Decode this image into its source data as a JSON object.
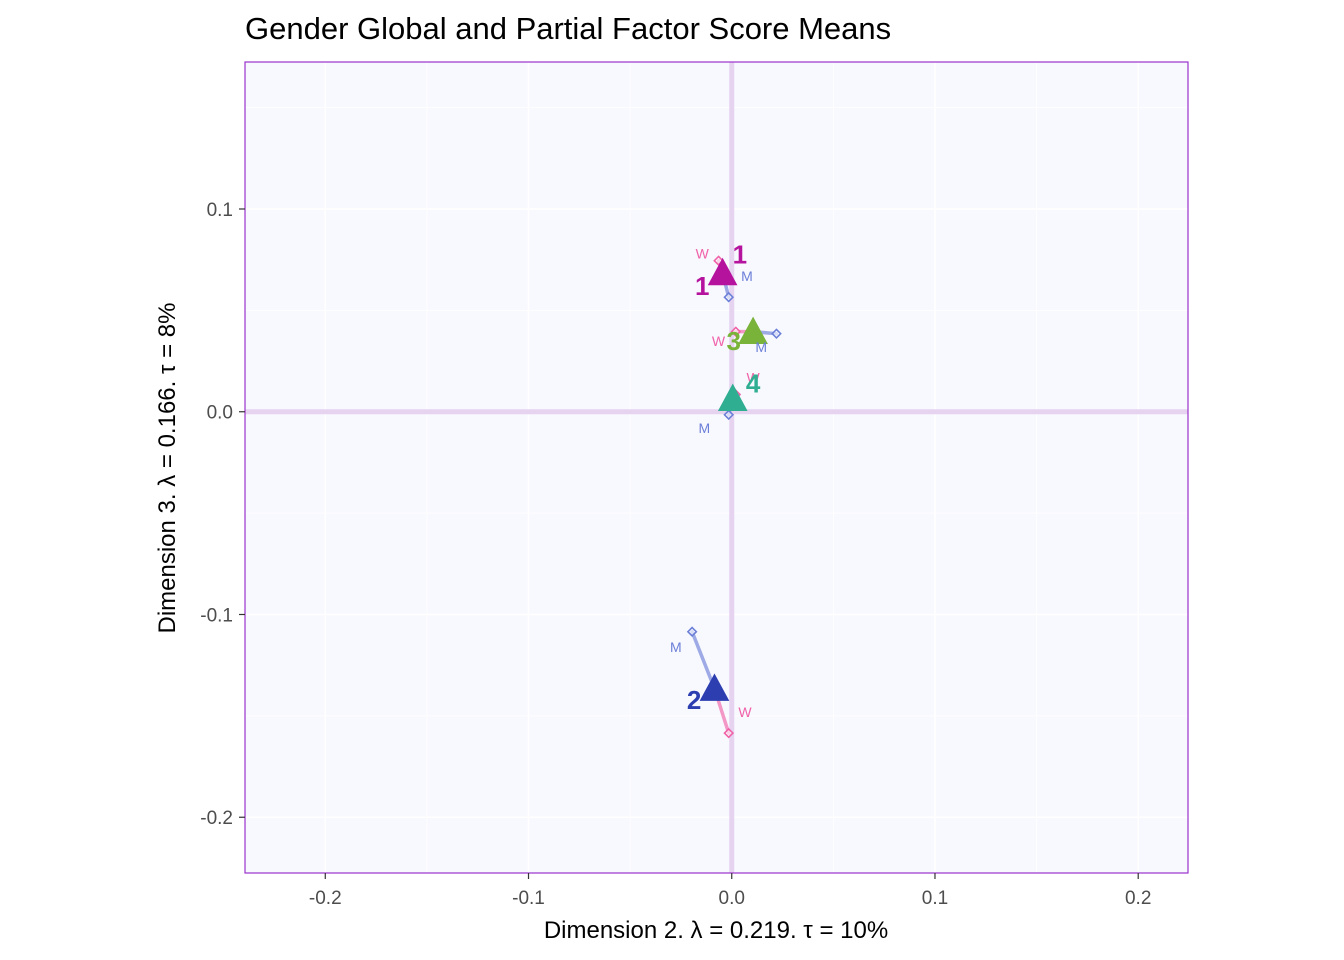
{
  "chart_data": {
    "type": "scatter",
    "title": "Gender Global and Partial Factor Score Means",
    "xlabel": "Dimension 2.   λ = 0.219.  τ = 10%",
    "ylabel": "Dimension 3.   λ = 0.166.  τ = 8%",
    "xlim": [
      -0.2395,
      0.2245
    ],
    "ylim": [
      -0.2275,
      0.1725
    ],
    "xticks": [
      -0.2,
      -0.1,
      0.0,
      0.1,
      0.2
    ],
    "xtick_labels": [
      "-0.2",
      "-0.1",
      "0.0",
      "0.1",
      "0.2"
    ],
    "yticks": [
      -0.2,
      -0.1,
      0.0,
      0.1
    ],
    "ytick_labels": [
      "-0.2",
      "-0.1",
      "0.0",
      "0.1"
    ],
    "background_color": "#f8f8ff",
    "border_color": "#9932cc",
    "origin_line_color": "#e6d3f0",
    "partial_colors": {
      "M": "#6b7fd7",
      "W": "#f062a8"
    },
    "groups": [
      {
        "name": "1",
        "color": "#b5139e",
        "x": -0.0045,
        "y": 0.0685,
        "labels": [
          {
            "text": "1",
            "x": 0.004,
            "y": 0.073
          },
          {
            "text": "1",
            "x": -0.0145,
            "y": 0.0575
          }
        ],
        "partials": [
          {
            "name": "W",
            "x": -0.0065,
            "y": 0.0745,
            "label_x": -0.0145,
            "label_y": 0.0755
          },
          {
            "name": "M",
            "x": -0.0015,
            "y": 0.0565,
            "label_x": 0.0075,
            "label_y": 0.0645
          }
        ]
      },
      {
        "name": "3",
        "color": "#7ab33a",
        "x": 0.0105,
        "y": 0.0395,
        "labels": [
          {
            "text": "3",
            "x": 0.001,
            "y": 0.0305
          }
        ],
        "partials": [
          {
            "name": "W",
            "x": 0.002,
            "y": 0.0395,
            "label_x": -0.0065,
            "label_y": 0.0325
          },
          {
            "name": "M",
            "x": 0.022,
            "y": 0.0385,
            "label_x": 0.0145,
            "label_y": 0.0295
          }
        ]
      },
      {
        "name": "4",
        "color": "#2fae92",
        "x": 0.0005,
        "y": 0.0065,
        "labels": [
          {
            "text": "4",
            "x": 0.0105,
            "y": 0.0095
          }
        ],
        "partials": [
          {
            "name": "W",
            "x": 0.002,
            "y": 0.0085,
            "label_x": 0.0105,
            "label_y": 0.0145
          },
          {
            "name": "M",
            "x": -0.0015,
            "y": -0.0015,
            "label_x": -0.0135,
            "label_y": -0.0105
          }
        ]
      },
      {
        "name": "2",
        "color": "#2c3eb0",
        "x": -0.0085,
        "y": -0.1365,
        "labels": [
          {
            "text": "2",
            "x": -0.0185,
            "y": -0.1465
          }
        ],
        "partials": [
          {
            "name": "M",
            "x": -0.0195,
            "y": -0.1085,
            "label_x": -0.0275,
            "label_y": -0.1185
          },
          {
            "name": "W",
            "x": -0.0015,
            "y": -0.1585,
            "label_x": 0.0065,
            "label_y": -0.1505
          }
        ]
      }
    ]
  }
}
